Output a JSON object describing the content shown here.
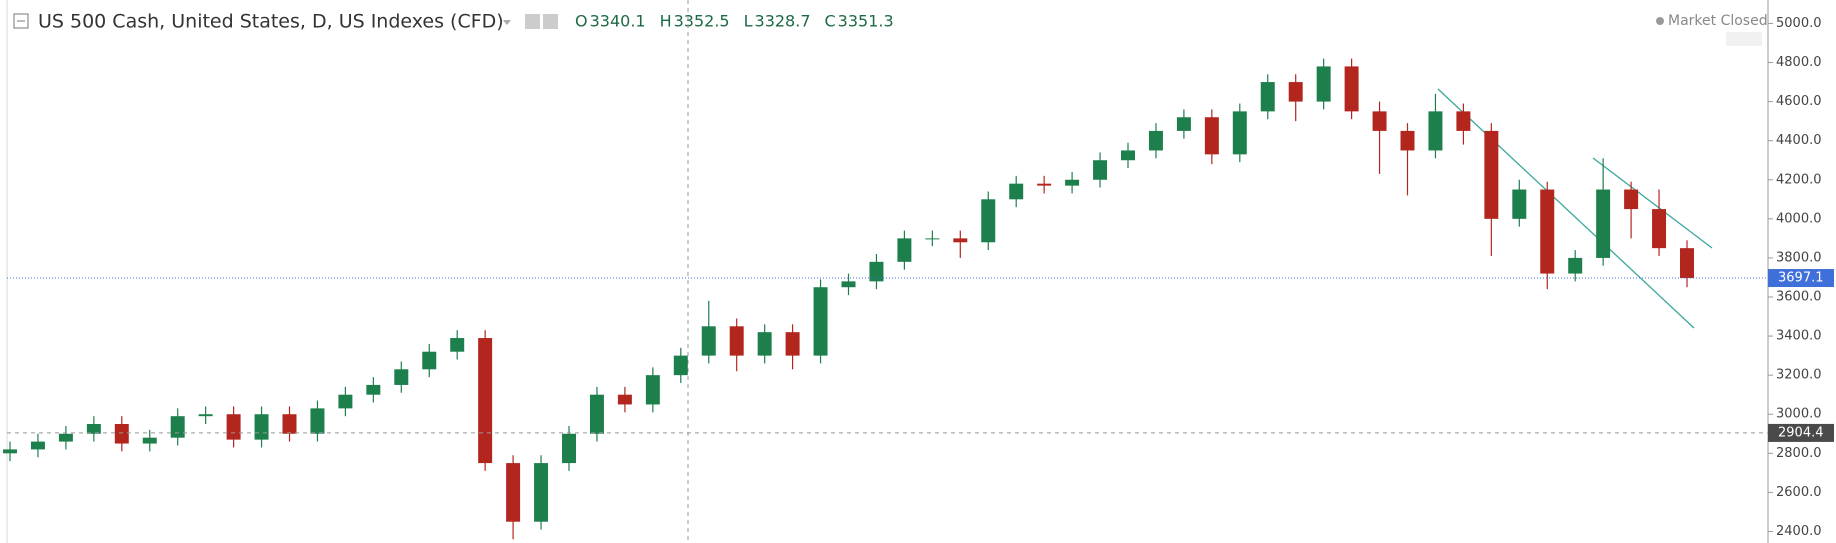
{
  "header": {
    "title": "US 500 Cash, United States, D, US Indexes (CFD)",
    "ohlc": [
      {
        "label": "O",
        "value": 3340.1
      },
      {
        "label": "H",
        "value": 3352.5
      },
      {
        "label": "L",
        "value": 3328.7
      },
      {
        "label": "C",
        "value": 3351.3
      }
    ],
    "status": "Market Closed"
  },
  "chart_data": {
    "type": "candlestick",
    "ylim": [
      2341,
      5120
    ],
    "yticks": [
      {
        "value": 2400,
        "label": "2400.0"
      },
      {
        "value": 2600,
        "label": "2600.0"
      },
      {
        "value": 2800,
        "label": "2800.0"
      },
      {
        "value": 3000,
        "label": "3000.0"
      },
      {
        "value": 3200,
        "label": "3200.0"
      },
      {
        "value": 3400,
        "label": "3400.0"
      },
      {
        "value": 3600,
        "label": "3600.0"
      },
      {
        "value": 3800,
        "label": "3800.0"
      },
      {
        "value": 4000,
        "label": "4000.0"
      },
      {
        "value": 4200,
        "label": "4200.0"
      },
      {
        "value": 4400,
        "label": "4400.0"
      },
      {
        "value": 4600,
        "label": "4600.0"
      },
      {
        "value": 4800,
        "label": "4800.0"
      },
      {
        "value": 5000,
        "label": "5000.0"
      }
    ],
    "open": [
      2800,
      2820,
      2860,
      2900,
      2950,
      2850,
      2880,
      2990,
      3000,
      2870,
      3000,
      2900,
      3030,
      3100,
      3150,
      3230,
      3320,
      3390,
      2750,
      2450,
      2750,
      2900,
      3100,
      3050,
      3200,
      3300,
      3450,
      3300,
      3420,
      3300,
      3650,
      3680,
      3780,
      3900,
      3900,
      3880,
      4100,
      4180,
      4170,
      4200,
      4300,
      4350,
      4450,
      4520,
      4330,
      4550,
      4700,
      4600,
      4780,
      4550,
      4450,
      4350,
      4550,
      4450,
      4000,
      4150,
      3720,
      3800,
      4150,
      4050,
      3850
    ],
    "high": [
      2860,
      2900,
      2940,
      2990,
      2990,
      2920,
      3030,
      3040,
      3040,
      3040,
      3040,
      3070,
      3140,
      3190,
      3270,
      3360,
      3430,
      3430,
      2790,
      2790,
      2940,
      3140,
      3140,
      3240,
      3340,
      3580,
      3490,
      3460,
      3460,
      3690,
      3720,
      3820,
      3940,
      3940,
      3940,
      4140,
      4220,
      4220,
      4240,
      4340,
      4390,
      4490,
      4560,
      4560,
      4590,
      4740,
      4740,
      4820,
      4820,
      4600,
      4490,
      4640,
      4590,
      4490,
      4200,
      4190,
      3840,
      4310,
      4190,
      4150,
      3890
    ],
    "low": [
      2760,
      2780,
      2820,
      2860,
      2810,
      2810,
      2840,
      2950,
      2830,
      2830,
      2860,
      2860,
      2990,
      3060,
      3110,
      3190,
      3280,
      2710,
      2360,
      2410,
      2710,
      2860,
      3010,
      3010,
      3160,
      3260,
      3220,
      3260,
      3230,
      3260,
      3610,
      3640,
      3740,
      3860,
      3800,
      3840,
      4060,
      4130,
      4130,
      4160,
      4260,
      4310,
      4410,
      4280,
      4290,
      4510,
      4500,
      4560,
      4510,
      4230,
      4120,
      4310,
      4380,
      3810,
      3960,
      3640,
      3680,
      3760,
      3900,
      3810,
      3650
    ],
    "close": [
      2820,
      2860,
      2900,
      2950,
      2850,
      2880,
      2990,
      3000,
      2870,
      3000,
      2900,
      3030,
      3100,
      3150,
      3230,
      3320,
      3390,
      2750,
      2450,
      2750,
      2900,
      3100,
      3050,
      3200,
      3300,
      3450,
      3300,
      3420,
      3300,
      3650,
      3680,
      3780,
      3900,
      3900,
      3880,
      4100,
      4180,
      4170,
      4200,
      4300,
      4350,
      4450,
      4520,
      4330,
      4550,
      4700,
      4600,
      4780,
      4550,
      4450,
      4350,
      4550,
      4450,
      4000,
      4150,
      3720,
      3800,
      4150,
      4050,
      3850,
      3697.1
    ],
    "up_color": "#1d7f4c",
    "down_color": "#b3261e",
    "last_price": 3697.1,
    "crosshair_price": 2904.4
  }
}
